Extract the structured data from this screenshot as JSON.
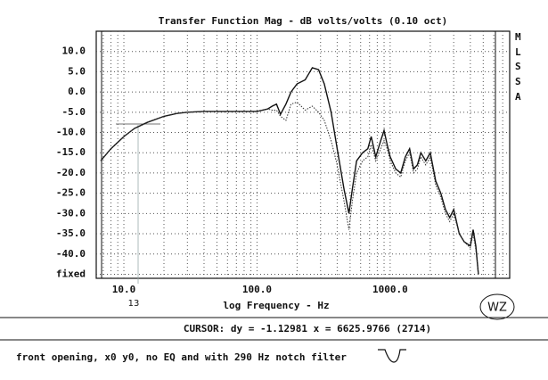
{
  "chart_data": {
    "type": "line",
    "title": "Transfer Function Mag - dB volts/volts (0.10 oct)",
    "x_label": "log Frequency - Hz",
    "side_label": [
      "M",
      "L",
      "S",
      "S",
      "A"
    ],
    "cursor_readout": "CURSOR: dy = -1.12981 x = 6625.9766 (2714)",
    "caption": "front opening, x0 y0, no EQ and with 290 Hz notch filter",
    "annotations": [
      "13",
      "WZ"
    ],
    "log_x": true,
    "grid": true,
    "xlim": [
      6.2,
      7900
    ],
    "ylim": [
      -46,
      15
    ],
    "xticks": [
      {
        "value": 10,
        "label": "10.0"
      },
      {
        "value": 100,
        "label": "100.0"
      },
      {
        "value": 1000,
        "label": "1000.0"
      }
    ],
    "yticks": [
      {
        "value": 10,
        "label": "10.0"
      },
      {
        "value": 5,
        "label": "5.0"
      },
      {
        "value": 0,
        "label": "0.0"
      },
      {
        "value": -5,
        "label": "-5.0"
      },
      {
        "value": -10,
        "label": "-10.0"
      },
      {
        "value": -15,
        "label": "-15.0"
      },
      {
        "value": -20,
        "label": "-20.0"
      },
      {
        "value": -25,
        "label": "-25.0"
      },
      {
        "value": -30,
        "label": "-30.0"
      },
      {
        "value": -35,
        "label": "-35.0"
      },
      {
        "value": -40,
        "label": "-40.0"
      },
      {
        "value": -45,
        "label": "fixed"
      }
    ],
    "x": [
      6.7,
      8,
      10,
      12,
      15,
      20,
      25,
      30,
      40,
      60,
      100,
      120,
      130,
      140,
      150,
      165,
      180,
      200,
      230,
      260,
      290,
      320,
      360,
      400,
      450,
      490,
      520,
      560,
      620,
      680,
      720,
      780,
      850,
      900,
      950,
      1000,
      1100,
      1200,
      1300,
      1400,
      1500,
      1600,
      1700,
      1850,
      2000,
      2200,
      2400,
      2600,
      2800,
      3000,
      3300,
      3600,
      4000,
      4200,
      4400,
      4600
    ],
    "series": [
      {
        "color": "#111111",
        "style": "solid",
        "values": [
          -17,
          -14,
          -11,
          -9,
          -7.5,
          -6,
          -5.3,
          -5,
          -4.8,
          -4.8,
          -4.8,
          -4.2,
          -3.5,
          -3,
          -5.5,
          -3,
          0,
          2,
          3,
          6,
          5.5,
          2,
          -5,
          -14,
          -24,
          -30,
          -24,
          -17,
          -15,
          -14,
          -11,
          -16,
          -12,
          -9.5,
          -13,
          -16,
          -19,
          -20,
          -16,
          -14,
          -19,
          -18,
          -15,
          -17,
          -15,
          -22,
          -25,
          -29,
          -31,
          -29,
          -35,
          -37,
          -38,
          -34,
          -38,
          -45
        ]
      },
      {
        "color": "#333333",
        "style": "dotted",
        "values": [
          -17,
          -14,
          -11,
          -9,
          -7.5,
          -6,
          -5.3,
          -5,
          -4.8,
          -4.8,
          -4.8,
          -4.2,
          -4.5,
          -4.5,
          -6,
          -7,
          -3,
          -2.5,
          -4.5,
          -3.5,
          -5,
          -7,
          -12,
          -18,
          -27,
          -34,
          -27,
          -20,
          -17,
          -16,
          -13,
          -17,
          -14,
          -12,
          -14,
          -17,
          -20,
          -21,
          -17,
          -15,
          -20,
          -19,
          -16,
          -18,
          -16,
          -23,
          -26,
          -30,
          -32,
          -30,
          -35,
          -37,
          -38.5,
          -35,
          -39,
          -45
        ]
      }
    ]
  }
}
